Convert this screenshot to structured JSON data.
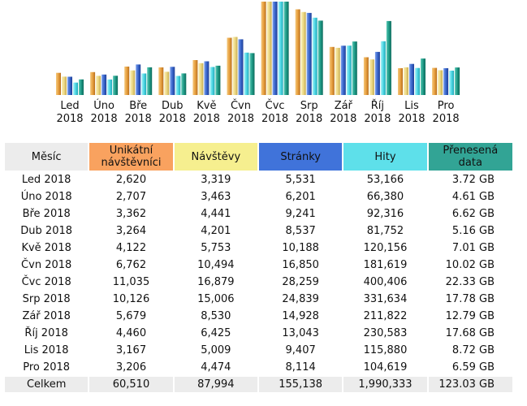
{
  "chart_data": {
    "type": "bar",
    "categories": [
      "Led 2018",
      "Úno 2018",
      "Bře 2018",
      "Dub 2018",
      "Kvě 2018",
      "Čvn 2018",
      "Čvc 2018",
      "Srp 2018",
      "Zář 2018",
      "Říj 2018",
      "Lis 2018",
      "Pro 2018"
    ],
    "category_lines": [
      [
        "Led",
        "2018"
      ],
      [
        "Úno",
        "2018"
      ],
      [
        "Bře",
        "2018"
      ],
      [
        "Dub",
        "2018"
      ],
      [
        "Kvě",
        "2018"
      ],
      [
        "Čvn",
        "2018"
      ],
      [
        "Čvc",
        "2018"
      ],
      [
        "Srp",
        "2018"
      ],
      [
        "Zář",
        "2018"
      ],
      [
        "Říj",
        "2018"
      ],
      [
        "Lis",
        "2018"
      ],
      [
        "Pro",
        "2018"
      ]
    ],
    "series": [
      {
        "name": "Unikátní návštěvníci",
        "color": "#e8a040",
        "values": [
          2620,
          2707,
          3362,
          3264,
          4122,
          6762,
          11035,
          10126,
          5679,
          4460,
          3167,
          3206
        ]
      },
      {
        "name": "Návštěvy",
        "color": "#ecd884",
        "values": [
          3319,
          3463,
          4441,
          4201,
          5753,
          10494,
          16879,
          15006,
          8530,
          6425,
          5009,
          4474
        ]
      },
      {
        "name": "Stránky",
        "color": "#3a66cc",
        "values": [
          5531,
          6201,
          9241,
          8537,
          10188,
          16850,
          28259,
          24839,
          14928,
          13043,
          9407,
          8114
        ]
      },
      {
        "name": "Hity",
        "color": "#4fd8e6",
        "values": [
          53166,
          66380,
          92316,
          81752,
          120156,
          181619,
          400406,
          331634,
          211822,
          230583,
          115880,
          104619
        ]
      },
      {
        "name": "Přenesená data (GB)",
        "color": "#1e9a86",
        "values": [
          3.72,
          4.61,
          6.62,
          5.16,
          7.01,
          10.02,
          22.33,
          17.78,
          12.79,
          17.68,
          8.72,
          6.59
        ]
      }
    ]
  },
  "table": {
    "headers": {
      "month": "Měsíc",
      "visitors": [
        "Unikátní",
        "návštěvníci"
      ],
      "visits": "Návštěvy",
      "pages": "Stránky",
      "hits": "Hity",
      "bandwidth": [
        "Přenesená",
        "data"
      ]
    },
    "rows": [
      {
        "month": "Led 2018",
        "visitors": "2,620",
        "visits": "3,319",
        "pages": "5,531",
        "hits": "53,166",
        "bandwidth": "3.72 GB"
      },
      {
        "month": "Úno 2018",
        "visitors": "2,707",
        "visits": "3,463",
        "pages": "6,201",
        "hits": "66,380",
        "bandwidth": "4.61 GB"
      },
      {
        "month": "Bře 2018",
        "visitors": "3,362",
        "visits": "4,441",
        "pages": "9,241",
        "hits": "92,316",
        "bandwidth": "6.62 GB"
      },
      {
        "month": "Dub 2018",
        "visitors": "3,264",
        "visits": "4,201",
        "pages": "8,537",
        "hits": "81,752",
        "bandwidth": "5.16 GB"
      },
      {
        "month": "Kvě 2018",
        "visitors": "4,122",
        "visits": "5,753",
        "pages": "10,188",
        "hits": "120,156",
        "bandwidth": "7.01 GB"
      },
      {
        "month": "Čvn 2018",
        "visitors": "6,762",
        "visits": "10,494",
        "pages": "16,850",
        "hits": "181,619",
        "bandwidth": "10.02 GB"
      },
      {
        "month": "Čvc 2018",
        "visitors": "11,035",
        "visits": "16,879",
        "pages": "28,259",
        "hits": "400,406",
        "bandwidth": "22.33 GB"
      },
      {
        "month": "Srp 2018",
        "visitors": "10,126",
        "visits": "15,006",
        "pages": "24,839",
        "hits": "331,634",
        "bandwidth": "17.78 GB"
      },
      {
        "month": "Zář 2018",
        "visitors": "5,679",
        "visits": "8,530",
        "pages": "14,928",
        "hits": "211,822",
        "bandwidth": "12.79 GB"
      },
      {
        "month": "Říj 2018",
        "visitors": "4,460",
        "visits": "6,425",
        "pages": "13,043",
        "hits": "230,583",
        "bandwidth": "17.68 GB"
      },
      {
        "month": "Lis 2018",
        "visitors": "3,167",
        "visits": "5,009",
        "pages": "9,407",
        "hits": "115,880",
        "bandwidth": "8.72 GB"
      },
      {
        "month": "Pro 2018",
        "visitors": "3,206",
        "visits": "4,474",
        "pages": "8,114",
        "hits": "104,619",
        "bandwidth": "6.59 GB"
      }
    ],
    "total": {
      "month": "Celkem",
      "visitors": "60,510",
      "visits": "87,994",
      "pages": "155,138",
      "hits": "1,990,333",
      "bandwidth": "123.03 GB"
    }
  }
}
